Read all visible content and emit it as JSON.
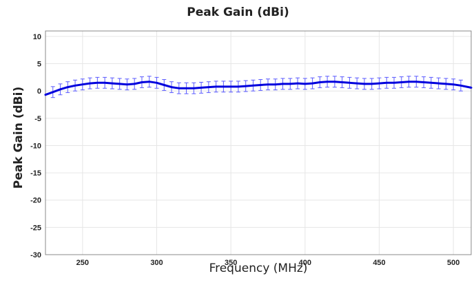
{
  "chart_data": {
    "type": "line",
    "title": "Peak Gain (dBi)",
    "xlabel": "Frequency (MHz)",
    "ylabel": "Peak Gain (dBi)",
    "xlim": [
      225,
      512
    ],
    "ylim": [
      -30,
      11
    ],
    "xticks": [
      250,
      300,
      350,
      400,
      450,
      500
    ],
    "yticks": [
      10,
      5,
      0,
      -5,
      -10,
      -15,
      -20,
      -25,
      -30
    ],
    "grid": true,
    "series": [
      {
        "color": "#0000dd",
        "errorbar_color": "#5a5aff",
        "x": [
          225,
          230,
          235,
          240,
          245,
          250,
          255,
          260,
          265,
          270,
          275,
          280,
          285,
          290,
          295,
          300,
          305,
          310,
          315,
          320,
          325,
          330,
          335,
          340,
          345,
          350,
          355,
          360,
          365,
          370,
          375,
          380,
          385,
          390,
          395,
          400,
          405,
          410,
          415,
          420,
          425,
          430,
          435,
          440,
          445,
          450,
          455,
          460,
          465,
          470,
          475,
          480,
          485,
          490,
          495,
          500,
          505,
          512
        ],
        "y": [
          -0.7,
          -0.2,
          0.3,
          0.7,
          1.0,
          1.2,
          1.4,
          1.5,
          1.5,
          1.4,
          1.3,
          1.2,
          1.3,
          1.6,
          1.7,
          1.5,
          1.1,
          0.7,
          0.5,
          0.5,
          0.5,
          0.6,
          0.7,
          0.8,
          0.8,
          0.8,
          0.8,
          0.9,
          1.0,
          1.1,
          1.2,
          1.2,
          1.3,
          1.3,
          1.4,
          1.3,
          1.4,
          1.6,
          1.7,
          1.7,
          1.6,
          1.5,
          1.4,
          1.3,
          1.3,
          1.4,
          1.5,
          1.5,
          1.6,
          1.7,
          1.7,
          1.6,
          1.5,
          1.4,
          1.3,
          1.2,
          1.0,
          0.6
        ]
      }
    ],
    "errorbars": {
      "x": [
        230,
        235,
        240,
        245,
        250,
        255,
        260,
        265,
        270,
        275,
        280,
        285,
        290,
        295,
        300,
        305,
        310,
        315,
        320,
        325,
        330,
        335,
        340,
        345,
        350,
        355,
        360,
        365,
        370,
        375,
        380,
        385,
        390,
        395,
        400,
        405,
        410,
        415,
        420,
        425,
        430,
        435,
        440,
        445,
        450,
        455,
        460,
        465,
        470,
        475,
        480,
        485,
        490,
        495,
        500,
        505
      ],
      "err": 1.0
    }
  }
}
